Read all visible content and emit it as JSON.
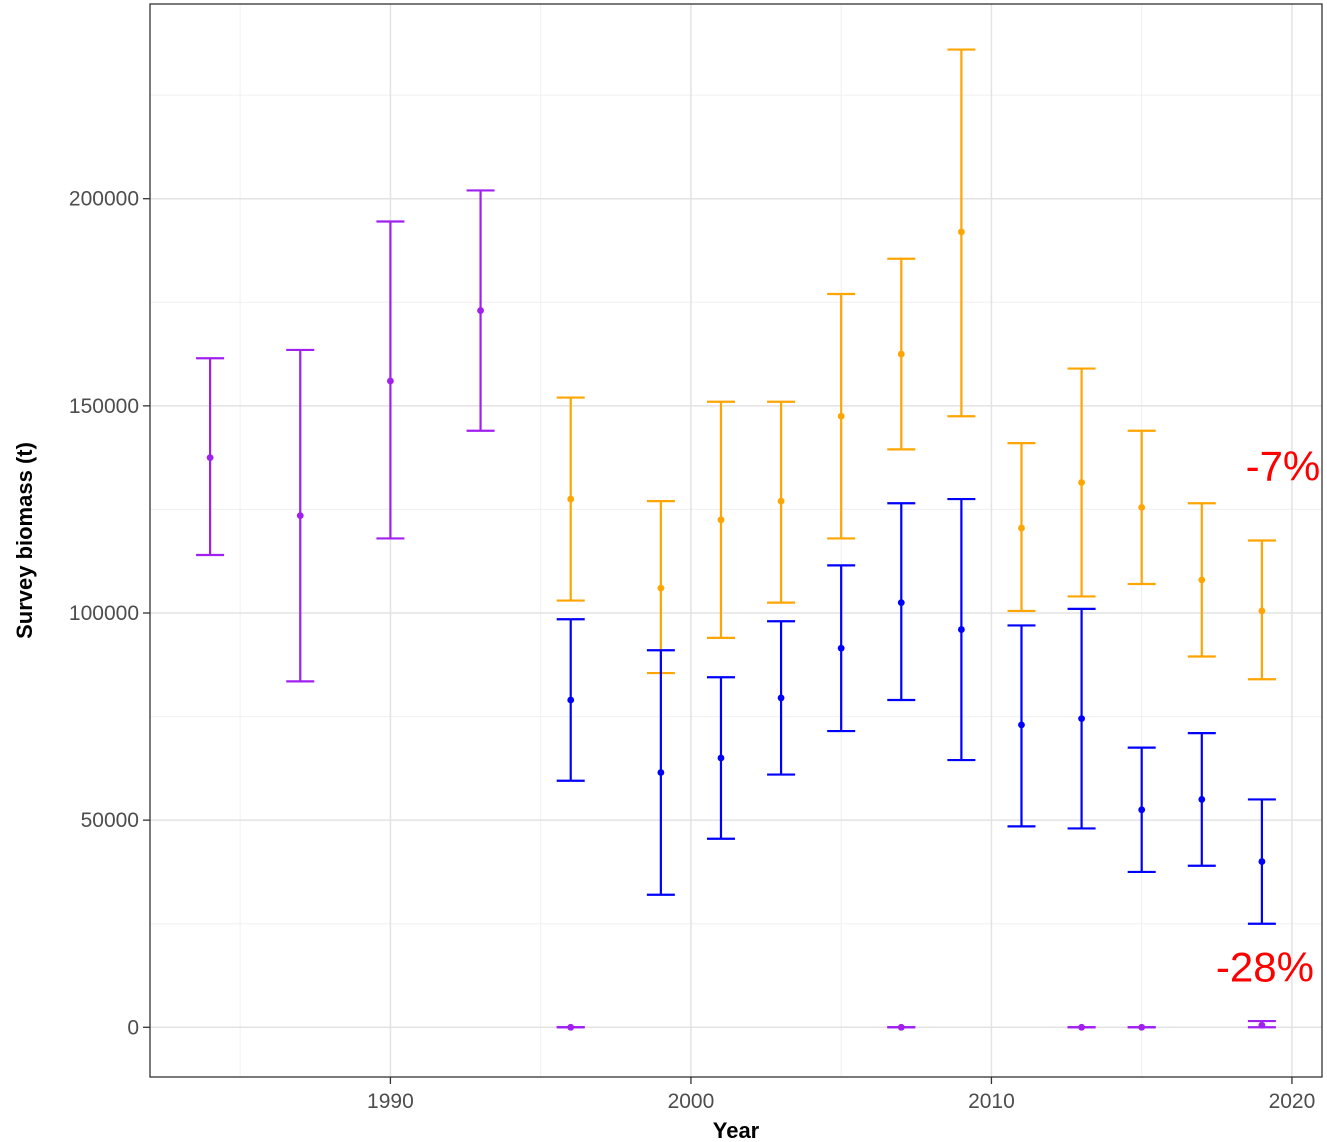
{
  "chart_data": {
    "type": "scatter",
    "title": "",
    "xlabel": "Year",
    "ylabel": "Survey biomass (t)",
    "xlim": [
      1982,
      2021
    ],
    "ylim": [
      -12000,
      247000
    ],
    "x_ticks": [
      1990,
      2000,
      2010,
      2020
    ],
    "y_ticks": [
      0,
      50000,
      100000,
      150000,
      200000
    ],
    "x_tick_labels": [
      "1990",
      "2000",
      "2010",
      "2020"
    ],
    "y_tick_labels": [
      "0",
      "50000",
      "100000",
      "150000",
      "200000"
    ],
    "grid": true,
    "legend": "none",
    "series": [
      {
        "color": "#A020F0",
        "points": [
          {
            "x": 1984,
            "y": 137500,
            "lo": 114000,
            "hi": 161500
          },
          {
            "x": 1987,
            "y": 123500,
            "lo": 83500,
            "hi": 163500
          },
          {
            "x": 1990,
            "y": 156000,
            "lo": 118000,
            "hi": 194500
          },
          {
            "x": 1993,
            "y": 173000,
            "lo": 144000,
            "hi": 202000
          },
          {
            "x": 1996,
            "y": 0,
            "lo": 0,
            "hi": 0
          },
          {
            "x": 2007,
            "y": 0,
            "lo": 0,
            "hi": 0
          },
          {
            "x": 2013,
            "y": 0,
            "lo": 0,
            "hi": 0
          },
          {
            "x": 2015,
            "y": 0,
            "lo": 0,
            "hi": 0
          },
          {
            "x": 2019,
            "y": 500,
            "lo": 0,
            "hi": 1500
          }
        ]
      },
      {
        "color": "#FFA500",
        "points": [
          {
            "x": 1996,
            "y": 127500,
            "lo": 103000,
            "hi": 152000
          },
          {
            "x": 1999,
            "y": 106000,
            "lo": 85500,
            "hi": 127000
          },
          {
            "x": 2001,
            "y": 122500,
            "lo": 94000,
            "hi": 151000
          },
          {
            "x": 2003,
            "y": 127000,
            "lo": 102500,
            "hi": 151000
          },
          {
            "x": 2005,
            "y": 147500,
            "lo": 118000,
            "hi": 177000
          },
          {
            "x": 2007,
            "y": 162500,
            "lo": 139500,
            "hi": 185500
          },
          {
            "x": 2009,
            "y": 192000,
            "lo": 147500,
            "hi": 236000
          },
          {
            "x": 2011,
            "y": 120500,
            "lo": 100500,
            "hi": 141000
          },
          {
            "x": 2013,
            "y": 131500,
            "lo": 104000,
            "hi": 159000
          },
          {
            "x": 2015,
            "y": 125500,
            "lo": 107000,
            "hi": 144000
          },
          {
            "x": 2017,
            "y": 108000,
            "lo": 89500,
            "hi": 126500
          },
          {
            "x": 2019,
            "y": 100500,
            "lo": 84000,
            "hi": 117500
          }
        ]
      },
      {
        "color": "#0000FF",
        "points": [
          {
            "x": 1996,
            "y": 79000,
            "lo": 59500,
            "hi": 98500
          },
          {
            "x": 1999,
            "y": 61500,
            "lo": 32000,
            "hi": 91000
          },
          {
            "x": 2001,
            "y": 65000,
            "lo": 45500,
            "hi": 84500
          },
          {
            "x": 2003,
            "y": 79500,
            "lo": 61000,
            "hi": 98000
          },
          {
            "x": 2005,
            "y": 91500,
            "lo": 71500,
            "hi": 111500
          },
          {
            "x": 2007,
            "y": 102500,
            "lo": 79000,
            "hi": 126500
          },
          {
            "x": 2009,
            "y": 96000,
            "lo": 64500,
            "hi": 127500
          },
          {
            "x": 2011,
            "y": 73000,
            "lo": 48500,
            "hi": 97000
          },
          {
            "x": 2013,
            "y": 74500,
            "lo": 48000,
            "hi": 101000
          },
          {
            "x": 2015,
            "y": 52500,
            "lo": 37500,
            "hi": 67500
          },
          {
            "x": 2017,
            "y": 55000,
            "lo": 39000,
            "hi": 71000
          },
          {
            "x": 2019,
            "y": 40000,
            "lo": 25000,
            "hi": 55000
          }
        ]
      }
    ],
    "annotations": [
      {
        "text": "-7%",
        "x": 2019.7,
        "y": 132000,
        "color": "#FF0000"
      },
      {
        "text": "-28%",
        "x": 2019.1,
        "y": 11000,
        "color": "#FF0000"
      }
    ]
  }
}
